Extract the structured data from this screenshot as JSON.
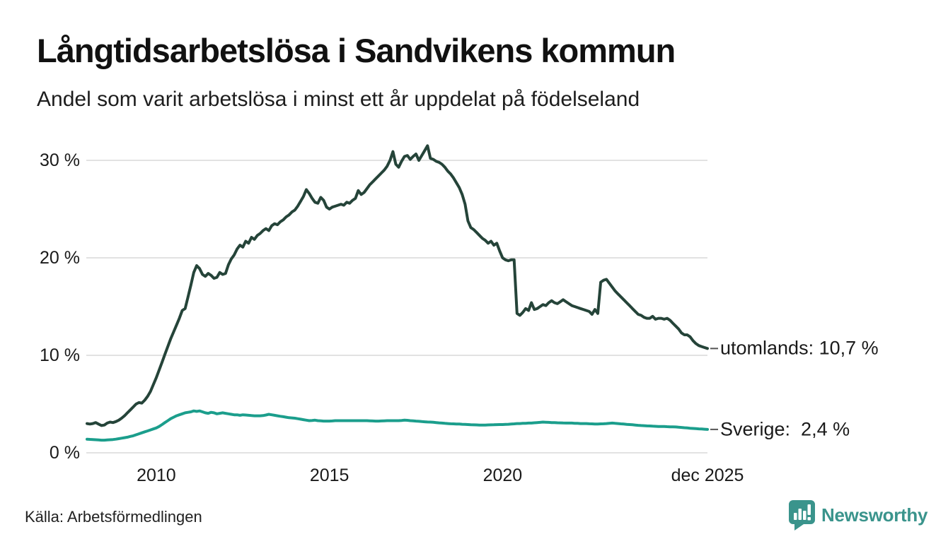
{
  "header": {
    "title": "Långtidsarbetslösa i Sandvikens kommun",
    "subtitle": "Andel som varit arbetslösa i minst ett år uppdelat på födelseland"
  },
  "source": {
    "label": "Källa: Arbetsförmedlingen"
  },
  "brand": {
    "name": "Newsworthy",
    "icon": "bar-chart-badge-icon",
    "color": "#3a948c"
  },
  "chart_data": {
    "type": "line",
    "title": "Långtidsarbetslösa i Sandvikens kommun",
    "subtitle": "Andel som varit arbetslösa i minst ett år uppdelat på födelseland",
    "x_unit": "monthly, decimal years",
    "x_start": 2008.0,
    "x_end_label": "dec 2025",
    "xlim": [
      2008.0,
      2025.9167
    ],
    "ylim": [
      0,
      33
    ],
    "grid": "horizontal-only",
    "y_ticks": [
      {
        "value": 0,
        "label": "0 %"
      },
      {
        "value": 10,
        "label": "10 %"
      },
      {
        "value": 20,
        "label": "20 %"
      },
      {
        "value": 30,
        "label": "30 %"
      }
    ],
    "x_ticks": [
      {
        "value": 2010,
        "label": "2010"
      },
      {
        "value": 2015,
        "label": "2015"
      },
      {
        "value": 2020,
        "label": "2020"
      },
      {
        "value": 2025.9167,
        "label": "dec 2025"
      }
    ],
    "colors": {
      "grid": "#e2e2e2",
      "tick_dash": "#555555",
      "text": "#1a1a1a"
    },
    "series": [
      {
        "name": "utomlands",
        "color": "#254439",
        "end_label": "utomlands: 10,7 %",
        "last_value_display": "10,7 %",
        "values": [
          3.0,
          2.95,
          3.0,
          3.1,
          2.95,
          2.8,
          2.85,
          3.05,
          3.15,
          3.1,
          3.2,
          3.35,
          3.55,
          3.8,
          4.1,
          4.4,
          4.7,
          5.0,
          5.15,
          5.1,
          5.4,
          5.8,
          6.3,
          7.0,
          7.7,
          8.5,
          9.3,
          10.1,
          10.9,
          11.7,
          12.4,
          13.1,
          13.8,
          14.6,
          14.8,
          16.0,
          17.2,
          18.5,
          19.2,
          18.9,
          18.3,
          18.1,
          18.4,
          18.2,
          17.9,
          18.0,
          18.5,
          18.3,
          18.4,
          19.3,
          19.9,
          20.3,
          20.9,
          21.3,
          21.1,
          21.7,
          21.5,
          22.1,
          21.9,
          22.3,
          22.5,
          22.8,
          23.0,
          22.8,
          23.3,
          23.5,
          23.4,
          23.7,
          23.9,
          24.2,
          24.4,
          24.7,
          24.9,
          25.3,
          25.8,
          26.3,
          27.0,
          26.6,
          26.1,
          25.7,
          25.6,
          26.2,
          25.9,
          25.2,
          25.0,
          25.2,
          25.3,
          25.4,
          25.5,
          25.4,
          25.7,
          25.6,
          25.9,
          26.1,
          26.9,
          26.5,
          26.7,
          27.1,
          27.5,
          27.8,
          28.1,
          28.4,
          28.7,
          29.0,
          29.4,
          30.0,
          30.9,
          29.6,
          29.3,
          29.9,
          30.4,
          30.5,
          30.1,
          30.4,
          30.65,
          30.0,
          30.5,
          31.0,
          31.5,
          30.2,
          30.1,
          29.9,
          29.8,
          29.6,
          29.3,
          28.9,
          28.6,
          28.2,
          27.7,
          27.2,
          26.5,
          25.5,
          23.8,
          23.1,
          22.9,
          22.6,
          22.3,
          22.0,
          21.8,
          21.5,
          21.7,
          21.3,
          21.5,
          20.7,
          20.0,
          19.8,
          19.7,
          19.8,
          19.8,
          14.3,
          14.1,
          14.4,
          14.8,
          14.6,
          15.4,
          14.7,
          14.8,
          15.0,
          15.2,
          15.1,
          15.4,
          15.6,
          15.4,
          15.3,
          15.5,
          15.7,
          15.5,
          15.3,
          15.1,
          15.0,
          14.9,
          14.8,
          14.7,
          14.6,
          14.5,
          14.2,
          14.7,
          14.3,
          17.5,
          17.7,
          17.8,
          17.4,
          17.0,
          16.6,
          16.3,
          16.0,
          15.7,
          15.4,
          15.1,
          14.8,
          14.5,
          14.2,
          14.1,
          13.9,
          13.8,
          13.8,
          14.0,
          13.7,
          13.8,
          13.8,
          13.7,
          13.8,
          13.6,
          13.3,
          13.0,
          12.7,
          12.3,
          12.1,
          12.1,
          11.9,
          11.5,
          11.2,
          11.0,
          10.9,
          10.8,
          10.7
        ]
      },
      {
        "name": "Sverige",
        "color": "#1b9e8c",
        "end_label": "Sverige:  2,4 %",
        "last_value_display": "2,4 %",
        "values": [
          1.4,
          1.38,
          1.36,
          1.34,
          1.32,
          1.3,
          1.3,
          1.32,
          1.34,
          1.36,
          1.4,
          1.45,
          1.5,
          1.55,
          1.6,
          1.68,
          1.75,
          1.85,
          1.95,
          2.05,
          2.15,
          2.25,
          2.35,
          2.45,
          2.55,
          2.7,
          2.9,
          3.1,
          3.3,
          3.5,
          3.65,
          3.8,
          3.9,
          4.0,
          4.1,
          4.15,
          4.2,
          4.3,
          4.25,
          4.3,
          4.2,
          4.1,
          4.05,
          4.15,
          4.1,
          4.0,
          4.05,
          4.1,
          4.05,
          4.0,
          3.95,
          3.9,
          3.9,
          3.85,
          3.9,
          3.88,
          3.85,
          3.82,
          3.8,
          3.8,
          3.8,
          3.82,
          3.88,
          3.95,
          3.9,
          3.85,
          3.8,
          3.75,
          3.7,
          3.65,
          3.6,
          3.58,
          3.55,
          3.5,
          3.45,
          3.4,
          3.35,
          3.3,
          3.32,
          3.35,
          3.3,
          3.28,
          3.25,
          3.25,
          3.25,
          3.27,
          3.3,
          3.3,
          3.3,
          3.3,
          3.3,
          3.3,
          3.3,
          3.3,
          3.3,
          3.3,
          3.3,
          3.3,
          3.28,
          3.27,
          3.25,
          3.25,
          3.27,
          3.28,
          3.3,
          3.3,
          3.3,
          3.3,
          3.3,
          3.32,
          3.35,
          3.33,
          3.3,
          3.28,
          3.25,
          3.23,
          3.2,
          3.18,
          3.16,
          3.15,
          3.13,
          3.1,
          3.07,
          3.05,
          3.02,
          3.0,
          2.98,
          2.97,
          2.96,
          2.95,
          2.93,
          2.92,
          2.9,
          2.88,
          2.87,
          2.86,
          2.85,
          2.85,
          2.85,
          2.86,
          2.87,
          2.88,
          2.89,
          2.9,
          2.9,
          2.92,
          2.93,
          2.95,
          2.97,
          3.0,
          3.0,
          3.02,
          3.03,
          3.05,
          3.05,
          3.08,
          3.1,
          3.12,
          3.15,
          3.14,
          3.12,
          3.1,
          3.1,
          3.08,
          3.07,
          3.06,
          3.05,
          3.05,
          3.05,
          3.03,
          3.02,
          3.0,
          3.0,
          3.0,
          2.98,
          2.97,
          2.96,
          2.95,
          2.97,
          2.98,
          3.0,
          3.03,
          3.05,
          3.02,
          3.0,
          2.97,
          2.95,
          2.92,
          2.9,
          2.88,
          2.85,
          2.82,
          2.8,
          2.78,
          2.76,
          2.75,
          2.73,
          2.72,
          2.7,
          2.7,
          2.7,
          2.68,
          2.67,
          2.66,
          2.65,
          2.62,
          2.6,
          2.57,
          2.55,
          2.52,
          2.5,
          2.48,
          2.46,
          2.44,
          2.42,
          2.4
        ]
      }
    ]
  }
}
